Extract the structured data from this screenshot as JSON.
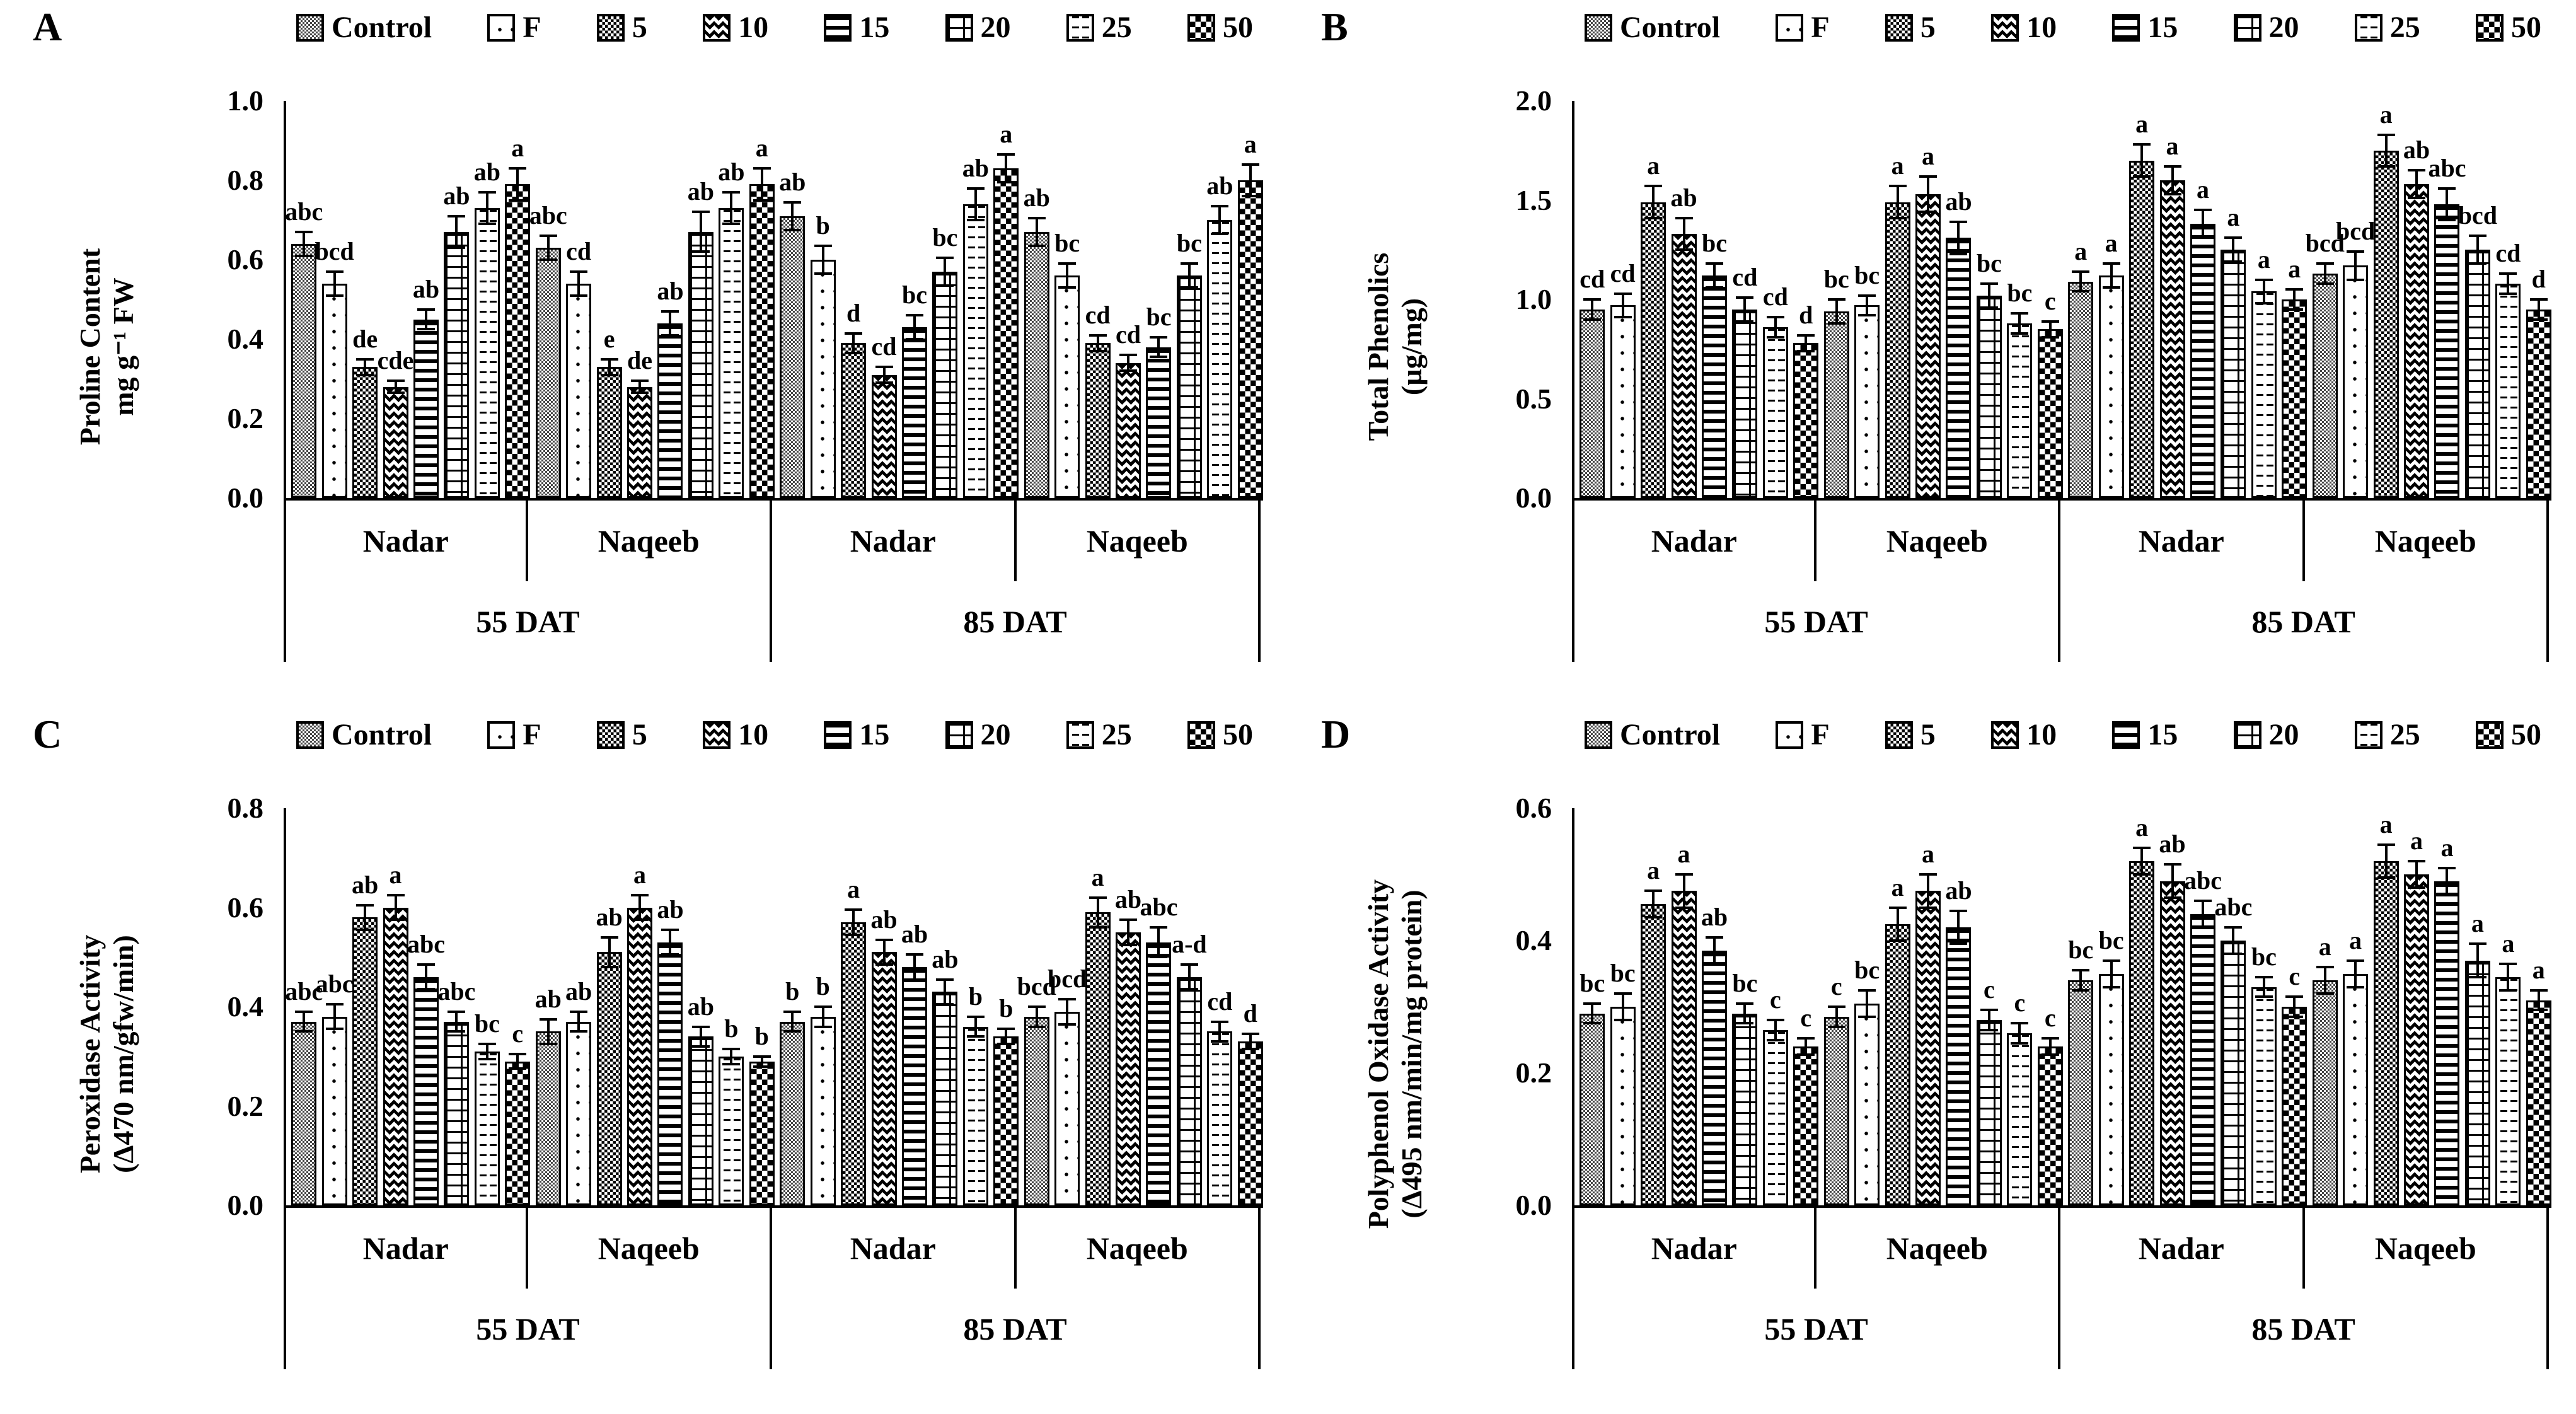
{
  "colors": {
    "ink": "#000000",
    "control_pattern_gray": "#474747",
    "background": "#ffffff"
  },
  "figure": {
    "legend": [
      "Control",
      "F",
      "5",
      "10",
      "15",
      "20",
      "25",
      "50"
    ],
    "time_row": [
      "55 DAT",
      "85 DAT"
    ],
    "cultivar_row": [
      "Nadar",
      "Naqeeb",
      "Nadar",
      "Naqeeb"
    ]
  },
  "chart_data": [
    {
      "type": "bar",
      "panel": "A",
      "ylabel_line1": "Proline Content",
      "ylabel_line2": "mg g⁻¹ FW",
      "ylim": [
        0,
        1.0
      ],
      "ytick_step": 0.2,
      "legend": [
        "Control",
        "F",
        "5",
        "10",
        "15",
        "20",
        "25",
        "50"
      ],
      "groups": [
        {
          "cultivar": "Nadar",
          "time": "55 DAT",
          "values": [
            0.64,
            0.54,
            0.33,
            0.28,
            0.45,
            0.67,
            0.73,
            0.79
          ],
          "errors": [
            0.03,
            0.03,
            0.02,
            0.015,
            0.025,
            0.04,
            0.04,
            0.04
          ],
          "letters": [
            "abc",
            "bcd",
            "de",
            "cde",
            "ab",
            "ab",
            "ab",
            "a"
          ]
        },
        {
          "cultivar": "Naqeeb",
          "time": "55 DAT",
          "values": [
            0.63,
            0.54,
            0.33,
            0.28,
            0.44,
            0.67,
            0.73,
            0.79
          ],
          "errors": [
            0.03,
            0.03,
            0.02,
            0.015,
            0.03,
            0.05,
            0.04,
            0.04
          ],
          "letters": [
            "abc",
            "cd",
            "e",
            "de",
            "ab",
            "ab",
            "ab",
            "a"
          ]
        },
        {
          "cultivar": "Nadar",
          "time": "85 DAT",
          "values": [
            0.71,
            0.6,
            0.39,
            0.31,
            0.43,
            0.57,
            0.74,
            0.83
          ],
          "errors": [
            0.035,
            0.035,
            0.025,
            0.02,
            0.03,
            0.035,
            0.04,
            0.035
          ],
          "letters": [
            "ab",
            "b",
            "d",
            "cd",
            "bc",
            "bc",
            "ab",
            "a"
          ]
        },
        {
          "cultivar": "Naqeeb",
          "time": "85 DAT",
          "values": [
            0.67,
            0.56,
            0.39,
            0.34,
            0.38,
            0.56,
            0.7,
            0.8
          ],
          "errors": [
            0.035,
            0.03,
            0.02,
            0.02,
            0.025,
            0.03,
            0.035,
            0.04
          ],
          "letters": [
            "ab",
            "bc",
            "cd",
            "cd",
            "bc",
            "bc",
            "ab",
            "a"
          ]
        }
      ]
    },
    {
      "type": "bar",
      "panel": "B",
      "ylabel_line1": "Total Phenolics",
      "ylabel_line2": "(µg/mg)",
      "ylim": [
        0,
        2.0
      ],
      "ytick_step": 0.5,
      "legend": [
        "Control",
        "F",
        "5",
        "10",
        "15",
        "20",
        "25",
        "50"
      ],
      "groups": [
        {
          "cultivar": "Nadar",
          "time": "55 DAT",
          "values": [
            0.95,
            0.97,
            1.49,
            1.33,
            1.12,
            0.95,
            0.86,
            0.78
          ],
          "errors": [
            0.05,
            0.06,
            0.08,
            0.08,
            0.06,
            0.06,
            0.05,
            0.04
          ],
          "letters": [
            "cd",
            "cd",
            "a",
            "ab",
            "bc",
            "cd",
            "cd",
            "d"
          ]
        },
        {
          "cultivar": "Naqeeb",
          "time": "55 DAT",
          "values": [
            0.94,
            0.97,
            1.49,
            1.53,
            1.31,
            1.02,
            0.88,
            0.85
          ],
          "errors": [
            0.06,
            0.05,
            0.08,
            0.09,
            0.08,
            0.06,
            0.05,
            0.04
          ],
          "letters": [
            "bc",
            "bc",
            "a",
            "a",
            "ab",
            "bc",
            "bc",
            "c"
          ]
        },
        {
          "cultivar": "Nadar",
          "time": "85 DAT",
          "values": [
            1.09,
            1.12,
            1.7,
            1.6,
            1.38,
            1.25,
            1.04,
            1.0
          ],
          "errors": [
            0.05,
            0.06,
            0.08,
            0.07,
            0.07,
            0.06,
            0.06,
            0.05
          ],
          "letters": [
            "a",
            "a",
            "a",
            "a",
            "a",
            "a",
            "a",
            "a"
          ]
        },
        {
          "cultivar": "Naqeeb",
          "time": "85 DAT",
          "values": [
            1.13,
            1.17,
            1.75,
            1.58,
            1.48,
            1.25,
            1.08,
            0.95
          ],
          "errors": [
            0.05,
            0.07,
            0.08,
            0.07,
            0.08,
            0.07,
            0.05,
            0.05
          ],
          "letters": [
            "bcd",
            "bcd",
            "a",
            "ab",
            "abc",
            "bcd",
            "cd",
            "d"
          ]
        }
      ]
    },
    {
      "type": "bar",
      "panel": "C",
      "ylabel_line1": "Peroxidase Activity",
      "ylabel_line2": "(Δ470 nm/gfw/min)",
      "ylim": [
        0,
        0.8
      ],
      "ytick_step": 0.2,
      "legend": [
        "Control",
        "F",
        "5",
        "10",
        "15",
        "20",
        "25",
        "50"
      ],
      "groups": [
        {
          "cultivar": "Nadar",
          "time": "55 DAT",
          "values": [
            0.37,
            0.38,
            0.58,
            0.6,
            0.46,
            0.37,
            0.31,
            0.29
          ],
          "errors": [
            0.02,
            0.025,
            0.025,
            0.025,
            0.025,
            0.02,
            0.015,
            0.015
          ],
          "letters": [
            "abc",
            "abc",
            "ab",
            "a",
            "abc",
            "abc",
            "bc",
            "c"
          ]
        },
        {
          "cultivar": "Naqeeb",
          "time": "55 DAT",
          "values": [
            0.35,
            0.37,
            0.51,
            0.6,
            0.53,
            0.34,
            0.3,
            0.29
          ],
          "errors": [
            0.025,
            0.02,
            0.03,
            0.025,
            0.025,
            0.02,
            0.015,
            0.01
          ],
          "letters": [
            "ab",
            "ab",
            "ab",
            "a",
            "ab",
            "ab",
            "b",
            "b"
          ]
        },
        {
          "cultivar": "Nadar",
          "time": "85 DAT",
          "values": [
            0.37,
            0.38,
            0.57,
            0.51,
            0.48,
            0.43,
            0.36,
            0.34
          ],
          "errors": [
            0.02,
            0.02,
            0.025,
            0.025,
            0.025,
            0.025,
            0.02,
            0.015
          ],
          "letters": [
            "b",
            "b",
            "a",
            "ab",
            "ab",
            "ab",
            "b",
            "b"
          ]
        },
        {
          "cultivar": "Naqeeb",
          "time": "85 DAT",
          "values": [
            0.38,
            0.39,
            0.59,
            0.55,
            0.53,
            0.46,
            0.35,
            0.33
          ],
          "errors": [
            0.02,
            0.025,
            0.03,
            0.025,
            0.03,
            0.025,
            0.02,
            0.015
          ],
          "letters": [
            "bcd",
            "bcd",
            "a",
            "ab",
            "abc",
            "a-d",
            "cd",
            "d"
          ]
        }
      ]
    },
    {
      "type": "bar",
      "panel": "D",
      "ylabel_line1": "Polyphenol Oxidase Activity",
      "ylabel_line2": "(Δ495 nm/min/mg protein)",
      "ylim": [
        0,
        0.6
      ],
      "ytick_step": 0.2,
      "legend": [
        "Control",
        "F",
        "5",
        "10",
        "15",
        "20",
        "25",
        "50"
      ],
      "groups": [
        {
          "cultivar": "Nadar",
          "time": "55 DAT",
          "values": [
            0.29,
            0.3,
            0.455,
            0.475,
            0.385,
            0.29,
            0.265,
            0.24
          ],
          "errors": [
            0.015,
            0.02,
            0.02,
            0.025,
            0.02,
            0.015,
            0.015,
            0.012
          ],
          "letters": [
            "bc",
            "bc",
            "a",
            "a",
            "ab",
            "bc",
            "c",
            "c"
          ]
        },
        {
          "cultivar": "Naqeeb",
          "time": "55 DAT",
          "values": [
            0.285,
            0.305,
            0.425,
            0.475,
            0.42,
            0.28,
            0.26,
            0.24
          ],
          "errors": [
            0.015,
            0.02,
            0.025,
            0.025,
            0.025,
            0.015,
            0.015,
            0.012
          ],
          "letters": [
            "c",
            "bc",
            "a",
            "a",
            "ab",
            "c",
            "c",
            "c"
          ]
        },
        {
          "cultivar": "Nadar",
          "time": "85 DAT",
          "values": [
            0.34,
            0.35,
            0.52,
            0.49,
            0.44,
            0.4,
            0.33,
            0.3
          ],
          "errors": [
            0.015,
            0.02,
            0.02,
            0.025,
            0.02,
            0.02,
            0.015,
            0.015
          ],
          "letters": [
            "bc",
            "bc",
            "a",
            "ab",
            "abc",
            "abc",
            "bc",
            "c"
          ]
        },
        {
          "cultivar": "Naqeeb",
          "time": "85 DAT",
          "values": [
            0.34,
            0.35,
            0.52,
            0.5,
            0.49,
            0.37,
            0.345,
            0.31
          ],
          "errors": [
            0.02,
            0.02,
            0.025,
            0.02,
            0.02,
            0.025,
            0.02,
            0.015
          ],
          "letters": [
            "a",
            "a",
            "a",
            "a",
            "a",
            "a",
            "a",
            "a"
          ]
        }
      ]
    }
  ]
}
